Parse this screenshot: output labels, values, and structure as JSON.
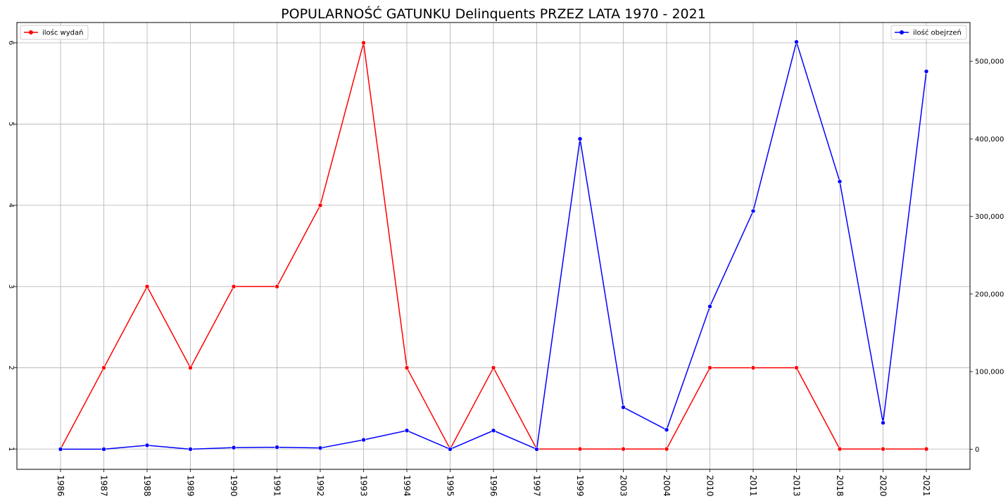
{
  "chart_data": {
    "type": "line",
    "title": "POPULARNOŚĆ GATUNKU Delinquents PRZEZ LATA 1970 - 2021",
    "categories": [
      "1986",
      "1987",
      "1988",
      "1989",
      "1990",
      "1991",
      "1992",
      "1993",
      "1994",
      "1995",
      "1996",
      "1997",
      "1999",
      "2003",
      "2004",
      "2010",
      "2011",
      "2013",
      "2018",
      "2020",
      "2021"
    ],
    "y_left": {
      "ticks": [
        1,
        2,
        3,
        4,
        5,
        6
      ],
      "tick_labels": [
        "1",
        "2",
        "3",
        "4",
        "5",
        "6"
      ],
      "range": [
        0.75,
        6.25
      ]
    },
    "y_right": {
      "ticks": [
        0,
        100000,
        200000,
        300000,
        400000,
        500000
      ],
      "tick_labels": [
        "0",
        "100,000",
        "200,000",
        "300,000",
        "400,000",
        "500,000"
      ],
      "range": [
        -26000,
        550000
      ]
    },
    "grid": true,
    "series": [
      {
        "name": "ilośc wydań",
        "axis": "left",
        "color": "#ff0000",
        "legend_position": "top-left",
        "values": [
          1,
          2,
          3,
          2,
          3,
          3,
          4,
          6,
          2,
          1,
          2,
          1,
          1,
          1,
          1,
          2,
          2,
          2,
          1,
          1,
          1
        ]
      },
      {
        "name": "ilość obejrzeń",
        "axis": "right",
        "color": "#0000ff",
        "legend_position": "top-right",
        "values": [
          0,
          0,
          5000,
          0,
          2000,
          2500,
          1500,
          12000,
          24000,
          0,
          24000,
          0,
          400000,
          54000,
          25000,
          184000,
          307000,
          525000,
          345000,
          34000,
          487000
        ]
      }
    ]
  }
}
